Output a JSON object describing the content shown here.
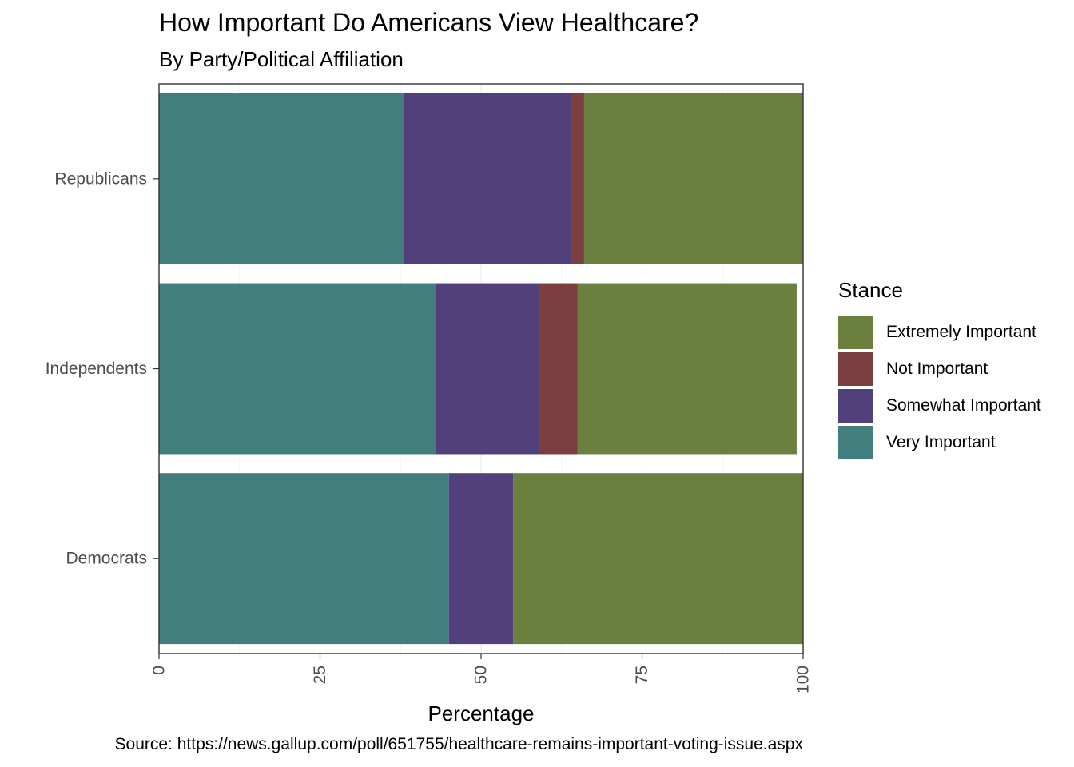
{
  "title": "How Important Do Americans View Healthcare?",
  "subtitle": "By Party/Political Affiliation",
  "caption": "Source: https://news.gallup.com/poll/651755/healthcare-remains-important-voting-issue.aspx",
  "chart_data": {
    "type": "bar",
    "orientation": "horizontal",
    "stacked": true,
    "categories": [
      "Republicans",
      "Independents",
      "Democrats"
    ],
    "series": [
      {
        "name": "Very Important",
        "values": [
          38,
          43,
          45
        ]
      },
      {
        "name": "Somewhat Important",
        "values": [
          26,
          16,
          10
        ]
      },
      {
        "name": "Not Important",
        "values": [
          2,
          6,
          0
        ]
      },
      {
        "name": "Extremely Important",
        "values": [
          34,
          34,
          45
        ]
      }
    ],
    "xlabel": "Percentage",
    "ylabel": "",
    "xlim": [
      0,
      100
    ],
    "x_ticks": [
      "0",
      "25",
      "50",
      "75",
      "100"
    ],
    "grid": true,
    "legend": {
      "title": "Stance",
      "placement": "right",
      "entries": [
        "Extremely Important",
        "Not Important",
        "Somewhat Important",
        "Very Important"
      ]
    },
    "colors": {
      "Very Important": "#427e7e",
      "Somewhat Important": "#51407c",
      "Not Important": "#7b3f3f",
      "Extremely Important": "#6b7f3f"
    }
  }
}
